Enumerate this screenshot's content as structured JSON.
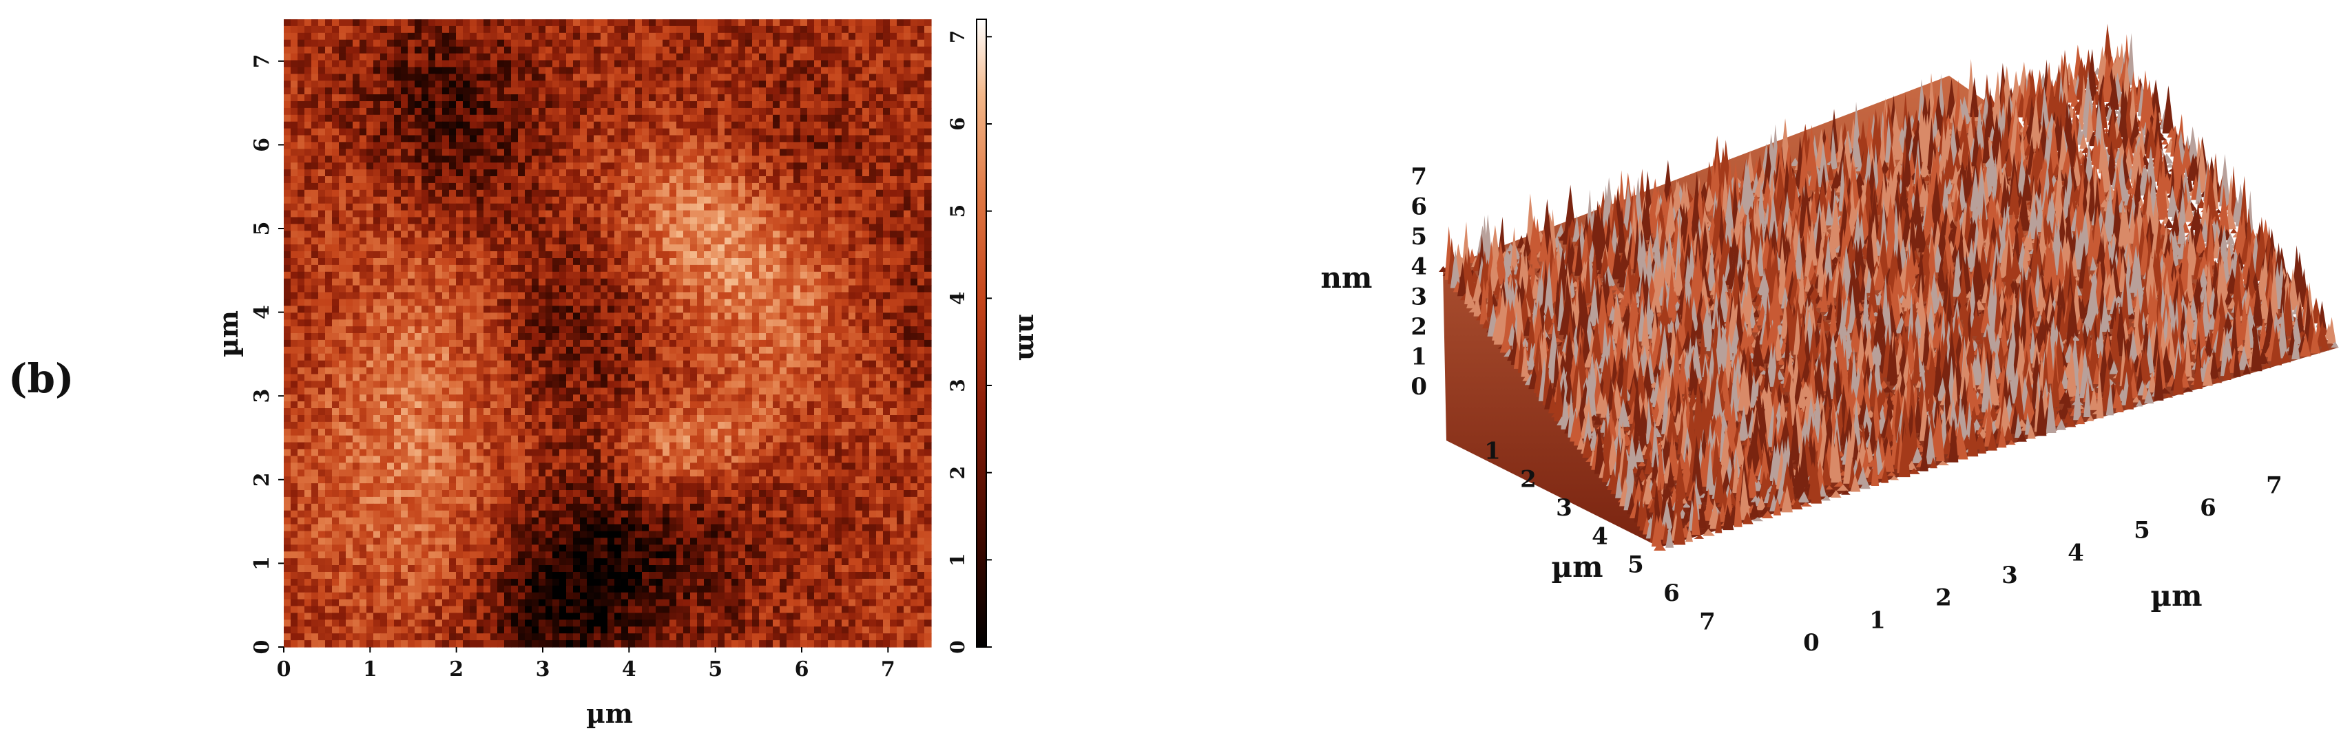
{
  "panel_label": "(b)",
  "chart_data": [
    {
      "type": "heatmap",
      "title": "",
      "xlabel": "µm",
      "ylabel": "µm",
      "xlim": [
        0,
        7.5
      ],
      "ylim": [
        0,
        7.5
      ],
      "xticks": [
        "0",
        "1",
        "2",
        "3",
        "4",
        "5",
        "6",
        "7"
      ],
      "yticks": [
        "0",
        "1",
        "2",
        "3",
        "4",
        "5",
        "6",
        "7"
      ],
      "colorbar": {
        "label": "nm",
        "range": [
          0,
          7.2
        ],
        "ticks": [
          "0",
          "1",
          "2",
          "3",
          "4",
          "5",
          "6",
          "7"
        ],
        "colors": [
          "#000000",
          "#3a0800",
          "#8a1d08",
          "#c4441a",
          "#e07844",
          "#f4b88a",
          "#ffffff"
        ]
      },
      "colormap": "dark-red to orange to white",
      "mean_height_nm": 3.5
    },
    {
      "type": "surface3d",
      "title": "",
      "zlabel": "nm",
      "xlabel": "µm",
      "ylabel": "µm",
      "zticks": [
        "0",
        "1",
        "2",
        "3",
        "4",
        "5",
        "6",
        "7"
      ],
      "xticks": [
        "0",
        "1",
        "2",
        "3",
        "4",
        "5",
        "6",
        "7"
      ],
      "yticks": [
        "1",
        "2",
        "3",
        "4",
        "5",
        "6",
        "7"
      ],
      "xlim": [
        0,
        7.5
      ],
      "ylim": [
        0,
        7.5
      ],
      "zlim": [
        0,
        7
      ]
    }
  ]
}
